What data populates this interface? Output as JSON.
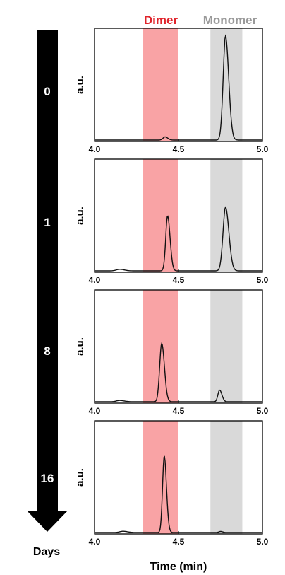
{
  "legend": [
    {
      "label": "Dimer",
      "color": "#e0242b"
    },
    {
      "label": "Monomer",
      "color": "#9a9a9a"
    }
  ],
  "timeline": {
    "label": "Days",
    "arrow_color": "#000000",
    "label_color": "#ffffff"
  },
  "colors": {
    "dimer_band": "#f9a3a5",
    "monomer_band": "#d9d9d9",
    "trace": "#111111"
  },
  "chart_data": {
    "type": "line",
    "xlabel": "Time (min)",
    "ylabel": "a.u.",
    "xlim": [
      4.0,
      5.0
    ],
    "xticks": [
      "4.0",
      "4.5",
      "5.0"
    ],
    "bands": [
      {
        "name": "Dimer",
        "range": [
          4.29,
          4.5
        ]
      },
      {
        "name": "Monomer",
        "range": [
          4.69,
          4.88
        ]
      }
    ],
    "panels": [
      {
        "day": "0",
        "peaks": [
          {
            "x": 4.42,
            "height": 0.03,
            "sigma": 0.012
          },
          {
            "x": 4.78,
            "height": 0.98,
            "sigma": 0.014
          },
          {
            "x": 4.15,
            "height": 0.0,
            "sigma": 0.02
          }
        ]
      },
      {
        "day": "1",
        "peaks": [
          {
            "x": 4.435,
            "height": 0.52,
            "sigma": 0.011
          },
          {
            "x": 4.78,
            "height": 0.6,
            "sigma": 0.015
          },
          {
            "x": 4.15,
            "height": 0.015,
            "sigma": 0.02
          }
        ]
      },
      {
        "day": "8",
        "peaks": [
          {
            "x": 4.4,
            "height": 0.55,
            "sigma": 0.012
          },
          {
            "x": 4.745,
            "height": 0.11,
            "sigma": 0.01
          },
          {
            "x": 4.15,
            "height": 0.012,
            "sigma": 0.02
          }
        ]
      },
      {
        "day": "16",
        "peaks": [
          {
            "x": 4.415,
            "height": 0.72,
            "sigma": 0.01
          },
          {
            "x": 4.75,
            "height": 0.01,
            "sigma": 0.01
          },
          {
            "x": 4.17,
            "height": 0.012,
            "sigma": 0.02
          }
        ]
      }
    ]
  }
}
